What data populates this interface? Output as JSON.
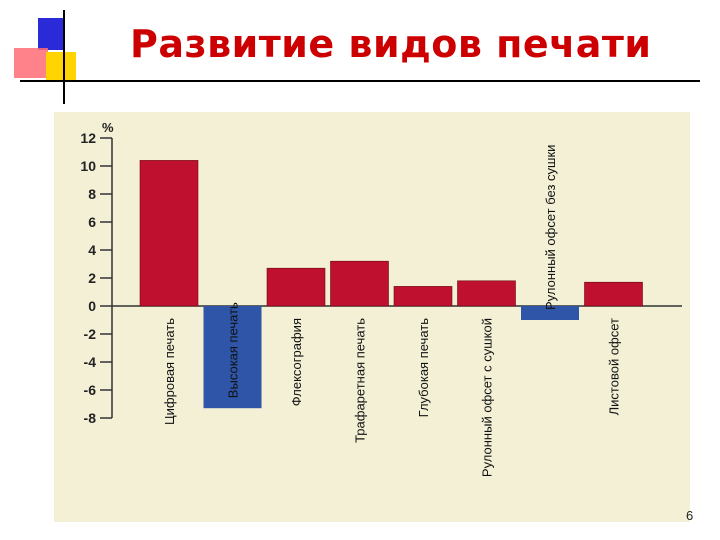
{
  "slide": {
    "title": "Развитие видов печати",
    "page_number": "6"
  },
  "colors": {
    "title": "#cc0000",
    "positive_bar": "#c0102f",
    "negative_bar": "#2e55a8",
    "chart_background": "#f3f0d6"
  },
  "chart_data": {
    "type": "bar",
    "ylabel": "%",
    "ylim": [
      -8,
      12
    ],
    "yticks": [
      12,
      10,
      8,
      6,
      4,
      2,
      0,
      -2,
      -4,
      -6,
      -8
    ],
    "grid": false,
    "categories": [
      "Цифровая печать",
      "Высокая печать",
      "Флексография",
      "Трафаретная печать",
      "Глубокая печать",
      "Рулонный офсет с сушкой",
      "Рулонный офсет без сушки",
      "Листовой офсет"
    ],
    "values": [
      10.4,
      -7.3,
      2.7,
      3.2,
      1.4,
      1.8,
      -1.0,
      1.7
    ]
  }
}
